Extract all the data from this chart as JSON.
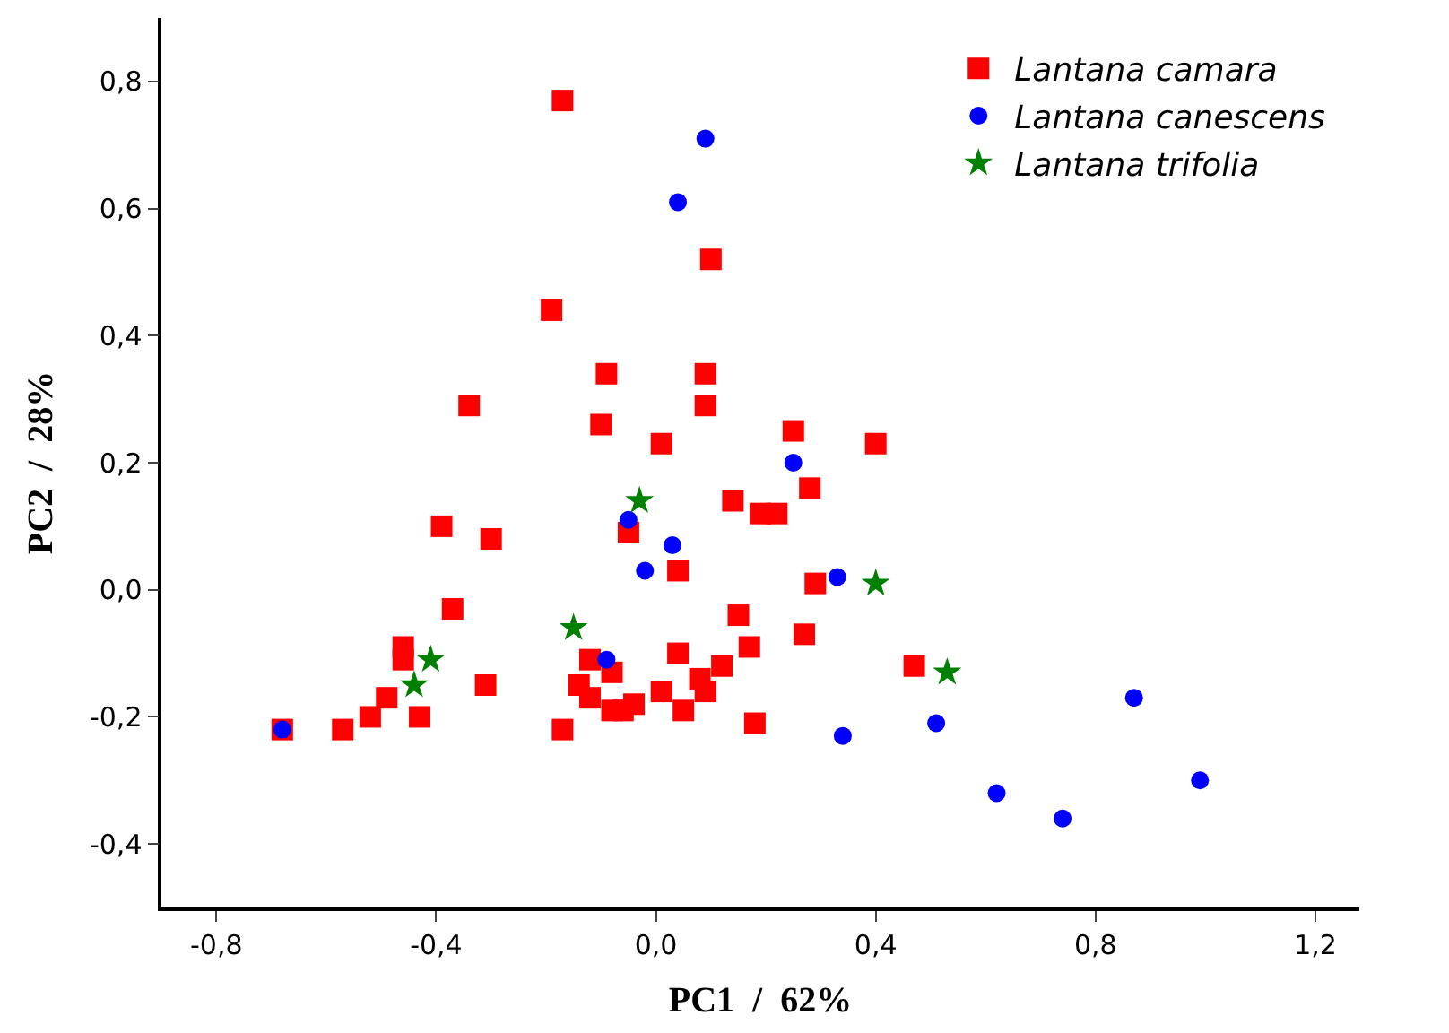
{
  "chart_data": {
    "type": "scatter",
    "xlabel": "PC1  /  62%",
    "ylabel": "PC2  /  28%",
    "xlim": [
      -0.9,
      1.28
    ],
    "ylim": [
      -0.5,
      0.9
    ],
    "xticks": [
      {
        "value": -0.8,
        "label": "-0,8"
      },
      {
        "value": -0.4,
        "label": "-0,4"
      },
      {
        "value": 0,
        "label": "0,0"
      },
      {
        "value": 0.4,
        "label": "0,4"
      },
      {
        "value": 0.8,
        "label": "0,8"
      },
      {
        "value": 1.2,
        "label": "1,2"
      }
    ],
    "yticks": [
      {
        "value": -0.4,
        "label": "-0,4"
      },
      {
        "value": -0.2,
        "label": "-0,2"
      },
      {
        "value": 0,
        "label": "0,0"
      },
      {
        "value": 0.2,
        "label": "0,2"
      },
      {
        "value": 0.4,
        "label": "0,4"
      },
      {
        "value": 0.6,
        "label": "0,6"
      },
      {
        "value": 0.8,
        "label": "0,8"
      }
    ],
    "legend": "top right",
    "series": [
      {
        "name": "Lantana camara",
        "color": "#ff0000",
        "marker": "square",
        "x": [
          -0.17,
          -0.19,
          0.1,
          -0.09,
          0.09,
          -0.34,
          -0.1,
          0.01,
          0.09,
          0.25,
          0.4,
          0.14,
          0.19,
          0.22,
          0.28,
          0.29,
          -0.05,
          0.04,
          0.15,
          0.17,
          0.27,
          0.47,
          -0.39,
          -0.3,
          -0.37,
          -0.46,
          -0.46,
          -0.49,
          -0.52,
          -0.43,
          -0.31,
          -0.57,
          -0.68,
          -0.17,
          -0.12,
          -0.08,
          -0.14,
          -0.12,
          -0.08,
          -0.06,
          -0.04,
          0.01,
          0.05,
          0.04,
          0.08,
          0.09,
          0.12,
          0.18
        ],
        "values": [
          0.77,
          0.44,
          0.52,
          0.34,
          0.34,
          0.29,
          0.26,
          0.23,
          0.29,
          0.25,
          0.23,
          0.14,
          0.12,
          0.12,
          0.16,
          0.01,
          0.09,
          0.03,
          -0.04,
          -0.09,
          -0.07,
          -0.12,
          0.1,
          0.08,
          -0.03,
          -0.09,
          -0.11,
          -0.17,
          -0.2,
          -0.2,
          -0.15,
          -0.22,
          -0.22,
          -0.22,
          -0.11,
          -0.13,
          -0.15,
          -0.17,
          -0.19,
          -0.19,
          -0.18,
          -0.16,
          -0.19,
          -0.1,
          -0.14,
          -0.16,
          -0.12,
          -0.21
        ]
      },
      {
        "name": "Lantana canescens",
        "color": "#0000ff",
        "marker": "circle",
        "x": [
          0.09,
          0.04,
          -0.05,
          0.03,
          -0.02,
          -0.09,
          -0.68,
          0.25,
          0.33,
          0.34,
          0.51,
          0.87,
          0.62,
          0.74,
          0.99
        ],
        "values": [
          0.71,
          0.61,
          0.11,
          0.07,
          0.03,
          -0.11,
          -0.22,
          0.2,
          0.02,
          -0.23,
          -0.21,
          -0.17,
          -0.32,
          -0.36,
          -0.3
        ]
      },
      {
        "name": "Lantana trifolia",
        "color": "#008000",
        "marker": "star",
        "x": [
          -0.03,
          -0.15,
          -0.41,
          -0.44,
          0.4,
          0.53
        ],
        "values": [
          0.14,
          -0.06,
          -0.11,
          -0.15,
          0.01,
          -0.13
        ]
      }
    ]
  }
}
